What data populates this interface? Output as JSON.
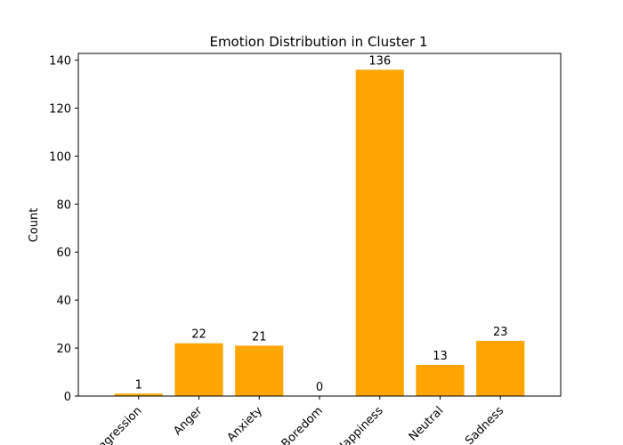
{
  "chart_data": {
    "type": "bar",
    "title": "Emotion Distribution in Cluster 1",
    "xlabel": "",
    "ylabel": "Count",
    "categories": [
      "Aggression",
      "Anger",
      "Anxiety",
      "Boredom",
      "Happiness",
      "Neutral",
      "Sadness"
    ],
    "values": [
      1,
      22,
      21,
      0,
      136,
      13,
      23
    ],
    "ylim": [
      0,
      142.8
    ],
    "yticks": [
      0,
      20,
      40,
      60,
      80,
      100,
      120,
      140
    ],
    "bar_color": "#ffa500",
    "grid": false,
    "legend": "none",
    "x_tick_rotation": 45
  }
}
